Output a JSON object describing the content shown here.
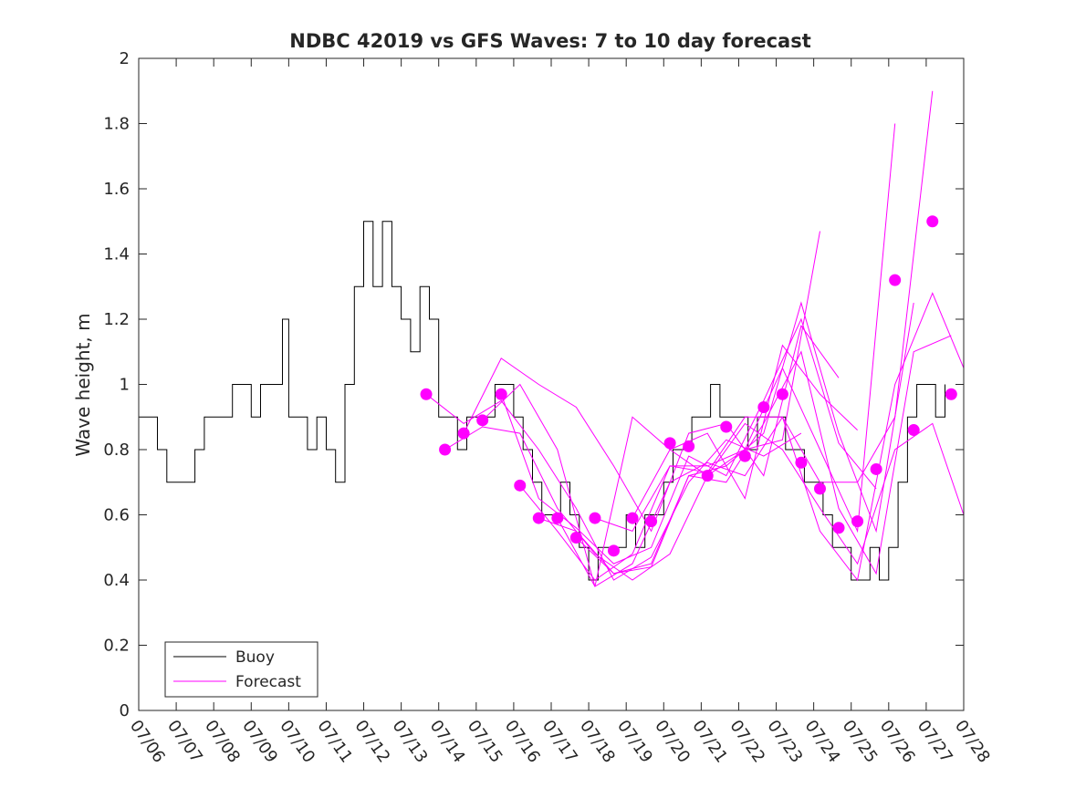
{
  "chart_data": {
    "type": "line",
    "title": "NDBC 42019 vs GFS Waves: 7 to 10 day forecast",
    "xlabel": "",
    "ylabel": "Wave height, m",
    "xlim": [
      "07/06",
      "07/28"
    ],
    "ylim": [
      0,
      2
    ],
    "x_ticks": [
      "07/06",
      "07/07",
      "07/08",
      "07/09",
      "07/10",
      "07/11",
      "07/12",
      "07/13",
      "07/14",
      "07/15",
      "07/16",
      "07/17",
      "07/18",
      "07/19",
      "07/20",
      "07/21",
      "07/22",
      "07/23",
      "07/24",
      "07/25",
      "07/26",
      "07/27",
      "07/28"
    ],
    "y_ticks": [
      "0",
      "0.2",
      "0.4",
      "0.6",
      "0.8",
      "1",
      "1.2",
      "1.4",
      "1.6",
      "1.8",
      "2"
    ],
    "grid": false,
    "legend": {
      "position": "bottom-left",
      "entries": [
        "Buoy",
        "Forecast"
      ]
    },
    "colors": {
      "buoy": "#000000",
      "forecast": "#ff00ff",
      "axes": "#262626"
    },
    "series": [
      {
        "name": "Buoy",
        "style": "line",
        "x": [
          "07/06 00:00",
          "07/06 12:00",
          "07/06 18:00",
          "07/07 00:00",
          "07/07 12:00",
          "07/07 18:00",
          "07/08 06:00",
          "07/08 12:00",
          "07/09 00:00",
          "07/09 06:00",
          "07/09 12:00",
          "07/09 20:00",
          "07/10 00:00",
          "07/10 12:00",
          "07/10 18:00",
          "07/11 00:00",
          "07/11 06:00",
          "07/11 12:00",
          "07/11 18:00",
          "07/12 00:00",
          "07/12 06:00",
          "07/12 12:00",
          "07/12 18:00",
          "07/13 00:00",
          "07/13 06:00",
          "07/13 12:00",
          "07/13 18:00",
          "07/14 00:00",
          "07/14 06:00",
          "07/14 12:00",
          "07/14 18:00",
          "07/15 00:00",
          "07/15 06:00",
          "07/15 12:00",
          "07/15 18:00",
          "07/16 00:00",
          "07/16 06:00",
          "07/16 12:00",
          "07/16 18:00",
          "07/17 00:00",
          "07/17 06:00",
          "07/17 12:00",
          "07/17 18:00",
          "07/18 00:00",
          "07/18 06:00",
          "07/18 12:00",
          "07/18 18:00",
          "07/19 00:00",
          "07/19 06:00",
          "07/19 12:00",
          "07/19 18:00",
          "07/20 00:00",
          "07/20 06:00",
          "07/20 12:00",
          "07/20 18:00",
          "07/21 00:00",
          "07/21 06:00",
          "07/21 12:00",
          "07/21 18:00",
          "07/22 00:00",
          "07/22 06:00",
          "07/22 12:00",
          "07/22 18:00",
          "07/23 00:00",
          "07/23 06:00",
          "07/23 12:00",
          "07/23 18:00",
          "07/24 00:00",
          "07/24 06:00",
          "07/24 12:00",
          "07/24 18:00",
          "07/25 00:00",
          "07/25 06:00",
          "07/25 12:00",
          "07/25 18:00",
          "07/26 00:00",
          "07/26 06:00",
          "07/26 12:00",
          "07/26 18:00",
          "07/27 00:00",
          "07/27 06:00",
          "07/27 12:00"
        ],
        "values": [
          0.9,
          0.8,
          0.7,
          0.7,
          0.8,
          0.9,
          0.9,
          1.0,
          0.9,
          1.0,
          1.0,
          1.2,
          0.9,
          0.8,
          0.9,
          0.8,
          0.7,
          1.0,
          1.3,
          1.5,
          1.3,
          1.5,
          1.3,
          1.2,
          1.1,
          1.3,
          1.2,
          0.9,
          0.9,
          0.8,
          0.9,
          0.9,
          0.9,
          1.0,
          1.0,
          0.9,
          0.8,
          0.7,
          0.6,
          0.6,
          0.7,
          0.6,
          0.5,
          0.4,
          0.5,
          0.5,
          0.5,
          0.6,
          0.5,
          0.6,
          0.6,
          0.7,
          0.8,
          0.8,
          0.9,
          0.9,
          1.0,
          0.9,
          0.9,
          0.9,
          0.8,
          0.9,
          0.9,
          0.9,
          0.8,
          0.8,
          0.7,
          0.7,
          0.6,
          0.5,
          0.5,
          0.4,
          0.4,
          0.5,
          0.4,
          0.5,
          0.7,
          0.9,
          1.0,
          1.0,
          0.9,
          1.0
        ]
      },
      {
        "name": "Forecast",
        "style": "markers",
        "x": [
          "07/13 16:00",
          "07/14 04:00",
          "07/14 16:00",
          "07/15 04:00",
          "07/15 16:00",
          "07/16 04:00",
          "07/16 16:00",
          "07/17 04:00",
          "07/17 16:00",
          "07/18 04:00",
          "07/18 16:00",
          "07/19 04:00",
          "07/19 16:00",
          "07/20 04:00",
          "07/20 16:00",
          "07/21 04:00",
          "07/21 16:00",
          "07/22 04:00",
          "07/22 16:00",
          "07/23 04:00",
          "07/23 16:00",
          "07/24 04:00",
          "07/24 16:00",
          "07/25 04:00",
          "07/25 16:00",
          "07/26 04:00",
          "07/26 16:00",
          "07/27 04:00",
          "07/27 16:00"
        ],
        "values": [
          0.97,
          0.8,
          0.85,
          0.89,
          0.97,
          0.69,
          0.59,
          0.59,
          0.53,
          0.59,
          0.49,
          0.59,
          0.58,
          0.82,
          0.81,
          0.72,
          0.87,
          0.78,
          0.93,
          0.97,
          0.76,
          0.68,
          0.56,
          0.58,
          0.74,
          1.32,
          0.86,
          1.5,
          0.97
        ]
      },
      {
        "name": "",
        "style": "line",
        "x": [
          "07/13 16:00",
          "07/14 16:00",
          "07/15 16:00",
          "07/16 16:00",
          "07/17 16:00",
          "07/18 16:00",
          "07/19 16:00",
          "07/20 16:00",
          "07/21 16:00",
          "07/22 16:00",
          "07/23 16:00"
        ],
        "values": [
          0.97,
          0.88,
          0.95,
          0.8,
          0.62,
          0.4,
          0.47,
          0.7,
          0.83,
          0.78,
          0.85
        ]
      },
      {
        "name": "",
        "style": "line",
        "x": [
          "07/14 04:00",
          "07/15 04:00",
          "07/16 04:00",
          "07/17 04:00",
          "07/18 04:00",
          "07/19 04:00",
          "07/20 04:00",
          "07/21 04:00",
          "07/22 04:00",
          "07/23 04:00",
          "07/24 04:00"
        ],
        "values": [
          0.8,
          0.87,
          0.85,
          0.62,
          0.48,
          0.4,
          0.48,
          0.72,
          0.8,
          0.83,
          1.47
        ]
      },
      {
        "name": "",
        "style": "line",
        "x": [
          "07/14 16:00",
          "07/15 16:00",
          "07/16 16:00",
          "07/17 16:00",
          "07/18 16:00",
          "07/19 16:00",
          "07/20 16:00",
          "07/21 16:00",
          "07/22 16:00",
          "07/23 16:00",
          "07/24 16:00"
        ],
        "values": [
          0.85,
          1.08,
          1.0,
          0.93,
          0.75,
          0.55,
          0.85,
          0.88,
          0.72,
          1.18,
          1.02
        ]
      },
      {
        "name": "",
        "style": "line",
        "x": [
          "07/15 04:00",
          "07/16 04:00",
          "07/17 04:00",
          "07/18 04:00",
          "07/19 04:00",
          "07/20 04:00",
          "07/21 04:00",
          "07/22 04:00",
          "07/23 04:00",
          "07/24 04:00",
          "07/25 04:00"
        ],
        "values": [
          0.89,
          1.0,
          0.8,
          0.38,
          0.9,
          0.8,
          0.85,
          0.65,
          1.12,
          0.97,
          0.86
        ]
      },
      {
        "name": "",
        "style": "line",
        "x": [
          "07/15 16:00",
          "07/16 16:00",
          "07/17 16:00",
          "07/18 16:00",
          "07/19 16:00",
          "07/20 16:00",
          "07/21 16:00",
          "07/22 16:00",
          "07/23 16:00",
          "07/24 16:00",
          "07/25 16:00"
        ],
        "values": [
          0.97,
          0.65,
          0.56,
          0.45,
          0.5,
          0.78,
          0.72,
          0.95,
          1.2,
          0.82,
          0.68
        ]
      },
      {
        "name": "",
        "style": "line",
        "x": [
          "07/16 04:00",
          "07/17 04:00",
          "07/18 04:00",
          "07/19 04:00",
          "07/20 04:00",
          "07/21 04:00",
          "07/22 04:00",
          "07/23 04:00",
          "07/24 04:00",
          "07/25 04:00",
          "07/26 04:00"
        ],
        "values": [
          0.69,
          0.55,
          0.4,
          0.48,
          0.75,
          0.75,
          0.8,
          1.05,
          0.8,
          0.55,
          1.8
        ]
      },
      {
        "name": "",
        "style": "line",
        "x": [
          "07/16 16:00",
          "07/17 16:00",
          "07/18 16:00",
          "07/19 16:00",
          "07/20 16:00",
          "07/21 16:00",
          "07/22 16:00",
          "07/23 16:00",
          "07/24 16:00",
          "07/25 16:00",
          "07/26 16:00"
        ],
        "values": [
          0.59,
          0.55,
          0.42,
          0.45,
          0.72,
          0.75,
          0.85,
          1.25,
          0.85,
          0.55,
          1.25
        ]
      },
      {
        "name": "",
        "style": "line",
        "x": [
          "07/17 04:00",
          "07/18 04:00",
          "07/19 04:00",
          "07/20 04:00",
          "07/21 04:00",
          "07/22 04:00",
          "07/23 04:00",
          "07/24 04:00",
          "07/25 04:00",
          "07/26 04:00",
          "07/27 04:00"
        ],
        "values": [
          0.59,
          0.38,
          0.45,
          0.7,
          0.76,
          0.72,
          0.9,
          0.7,
          0.7,
          0.9,
          1.9
        ]
      },
      {
        "name": "",
        "style": "line",
        "x": [
          "07/17 16:00",
          "07/18 16:00",
          "07/19 16:00",
          "07/20 16:00",
          "07/21 16:00",
          "07/22 16:00",
          "07/23 16:00",
          "07/24 16:00",
          "07/25 16:00",
          "07/26 16:00",
          "07/27 16:00"
        ],
        "values": [
          0.53,
          0.42,
          0.44,
          0.72,
          0.7,
          0.88,
          1.1,
          0.62,
          0.42,
          1.1,
          1.15
        ]
      },
      {
        "name": "",
        "style": "line",
        "x": [
          "07/18 04:00",
          "07/19 04:00",
          "07/20 04:00",
          "07/21 04:00",
          "07/22 04:00",
          "07/23 04:00",
          "07/24 04:00",
          "07/25 04:00",
          "07/26 04:00",
          "07/27 04:00",
          "07/28 00:00"
        ],
        "values": [
          0.59,
          0.55,
          0.75,
          0.73,
          0.9,
          0.9,
          0.55,
          0.4,
          1.0,
          1.28,
          1.05
        ]
      },
      {
        "name": "",
        "style": "line",
        "x": [
          "07/19 04:00",
          "07/20 04:00",
          "07/21 04:00",
          "07/22 04:00",
          "07/23 04:00",
          "07/24 04:00",
          "07/25 04:00",
          "07/26 04:00",
          "07/27 04:00",
          "07/28 00:00"
        ],
        "values": [
          0.59,
          0.8,
          0.72,
          0.88,
          0.8,
          0.62,
          0.45,
          0.8,
          0.88,
          0.6
        ]
      }
    ]
  }
}
